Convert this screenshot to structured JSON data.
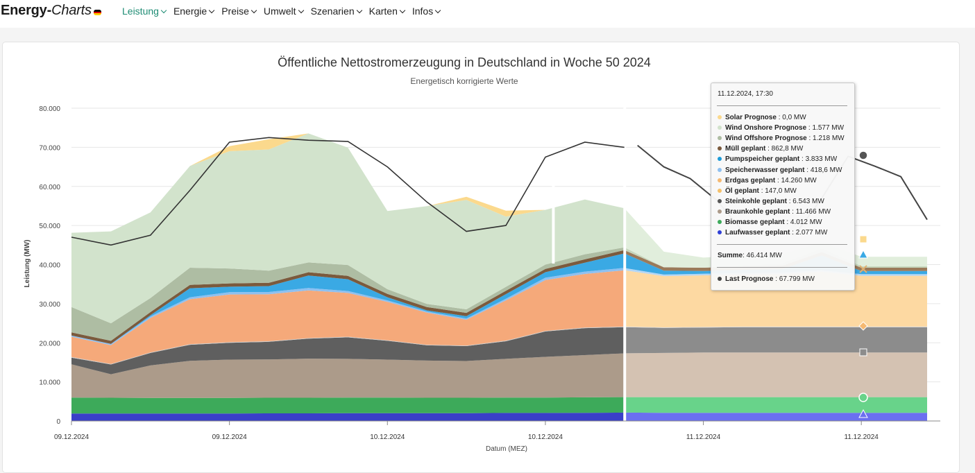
{
  "brand": {
    "energy": "Energy",
    "dash": "-",
    "charts": "Charts"
  },
  "nav": [
    {
      "label": "Leistung",
      "active": true
    },
    {
      "label": "Energie",
      "active": false
    },
    {
      "label": "Preise",
      "active": false
    },
    {
      "label": "Umwelt",
      "active": false
    },
    {
      "label": "Szenarien",
      "active": false
    },
    {
      "label": "Karten",
      "active": false
    },
    {
      "label": "Infos",
      "active": false
    }
  ],
  "chart_data": {
    "type": "area",
    "title": "Öffentliche Nettostromerzeugung in Deutschland in Woche 50 2024",
    "subtitle": "Energetisch korrigierte Werte",
    "xlabel": "Datum (MEZ)",
    "ylabel": "Leistung (MW)",
    "ylim": [
      0,
      80000
    ],
    "yticks": [
      "0",
      "10.000",
      "20.000",
      "30.000",
      "40.000",
      "50.000",
      "60.000",
      "70.000",
      "80.000"
    ],
    "xticks": [
      "09.12.2024",
      "09.12.2024",
      "10.12.2024",
      "10.12.2024",
      "11.12.2024",
      "11.12.2024"
    ],
    "grid": true,
    "x_hours": [
      0,
      3,
      6,
      9,
      12,
      15,
      18,
      21,
      24,
      27,
      30,
      33,
      36,
      39,
      42,
      45,
      48,
      51,
      54,
      57,
      60
    ],
    "split_hour": 42,
    "series": [
      {
        "name": "Laufwasser",
        "color": "#3a3fc9",
        "forecast_color": "#6b6ff0",
        "values": [
          1900,
          1900,
          1900,
          1900,
          1900,
          1950,
          1950,
          2000,
          2000,
          2000,
          2000,
          2050,
          2050,
          2100,
          2150,
          2100,
          2100,
          2100,
          2100,
          2100,
          2100
        ]
      },
      {
        "name": "Biomasse",
        "color": "#3daa5a",
        "forecast_color": "#68d38a",
        "values": [
          4100,
          4050,
          4000,
          4000,
          4000,
          4000,
          4000,
          4000,
          4000,
          3950,
          3950,
          3950,
          3950,
          3950,
          3950,
          4000,
          4000,
          4000,
          4000,
          4000,
          4000
        ]
      },
      {
        "name": "Braunkohle",
        "color": "#ac9b8a",
        "forecast_color": "#d4c2b2",
        "values": [
          8500,
          6000,
          8300,
          9500,
          9800,
          9800,
          10000,
          9900,
          9700,
          9500,
          9400,
          9900,
          10400,
          10800,
          11200,
          11300,
          11400,
          11400,
          11400,
          11400,
          11400
        ]
      },
      {
        "name": "Steinkohle",
        "color": "#5f5f5f",
        "forecast_color": "#8c8c8c",
        "values": [
          1700,
          2500,
          3200,
          4100,
          4300,
          4500,
          5100,
          5500,
          4800,
          3900,
          3800,
          4500,
          6500,
          6900,
          6700,
          6400,
          6400,
          6500,
          6500,
          6500,
          6500
        ]
      },
      {
        "name": "Öl",
        "color": "#cccccc",
        "forecast_color": "#dddddd",
        "values": [
          150,
          150,
          150,
          150,
          150,
          150,
          150,
          150,
          150,
          150,
          150,
          150,
          150,
          150,
          150,
          150,
          150,
          150,
          150,
          150,
          150
        ]
      },
      {
        "name": "Erdgas",
        "color": "#f5a97a",
        "forecast_color": "#fdd9a2",
        "values": [
          5200,
          4800,
          8800,
          11500,
          12200,
          12000,
          12200,
          11200,
          9800,
          8200,
          6600,
          10300,
          13000,
          13700,
          14400,
          13100,
          13200,
          13300,
          13400,
          14000,
          13000
        ]
      },
      {
        "name": "Speicherwasser",
        "color": "#8ec0f0",
        "forecast_color": "#b3d6f5",
        "values": [
          300,
          300,
          400,
          500,
          600,
          600,
          600,
          500,
          400,
          300,
          300,
          400,
          600,
          600,
          600,
          400,
          400,
          400,
          400,
          400,
          400
        ]
      },
      {
        "name": "Pumpspeicher",
        "color": "#3aa9e4",
        "forecast_color": "#3aa9e4",
        "values": [
          0,
          0,
          300,
          2300,
          1400,
          1500,
          3200,
          3000,
          800,
          300,
          600,
          1200,
          1400,
          2300,
          3700,
          1000,
          700,
          800,
          900,
          3800,
          800
        ]
      },
      {
        "name": "Müll",
        "color": "#7b5a3d",
        "forecast_color": "#9a7a5a",
        "values": [
          800,
          800,
          800,
          850,
          850,
          850,
          850,
          850,
          850,
          850,
          850,
          850,
          850,
          850,
          850,
          850,
          850,
          850,
          860,
          860,
          860
        ]
      },
      {
        "name": "Wind Offshore",
        "color": "#aebda3",
        "forecast_color": "#c6d6bc",
        "values": [
          6500,
          4500,
          3600,
          4400,
          3800,
          3100,
          2500,
          2800,
          1200,
          800,
          900,
          1000,
          1100,
          1300,
          700,
          0,
          0,
          200,
          600,
          900,
          400
        ]
      },
      {
        "name": "Wind Onshore",
        "color": "#d2e3cc",
        "forecast_color": "#e1eedc",
        "values": [
          19000,
          23500,
          21900,
          26000,
          30000,
          31000,
          33000,
          30000,
          20000,
          25000,
          28000,
          18000,
          14000,
          14000,
          10000,
          4000,
          2600,
          2600,
          2400,
          1600,
          2400
        ]
      },
      {
        "name": "Solar",
        "color": "#fbd98d",
        "forecast_color": "#fbd98d",
        "values": [
          0,
          0,
          0,
          0,
          1300,
          2600,
          0,
          0,
          0,
          0,
          800,
          1500,
          0,
          0,
          0,
          0,
          0,
          0,
          0,
          0,
          0
        ]
      }
    ],
    "load": {
      "name": "Last",
      "color": "#333333",
      "values": [
        47000,
        45000,
        47500,
        59000,
        71300,
        72500,
        71800,
        71500,
        65000,
        56000,
        48500,
        50000,
        67500,
        71300,
        70000,
        70500,
        65000,
        62000,
        56500,
        48500,
        48200,
        47800,
        57000,
        67700,
        65200,
        62500,
        51500
      ],
      "x_hours": [
        0,
        3,
        6,
        9,
        12,
        15,
        18,
        21,
        24,
        27,
        30,
        33,
        36,
        39,
        42,
        43,
        45,
        47,
        49,
        51,
        53,
        55,
        57,
        59,
        61,
        63,
        65
      ]
    }
  },
  "tooltip": {
    "header": "11.12.2024, 17:30",
    "rows": [
      {
        "label": "Solar Prognose",
        "value": ": 0,0 MW",
        "color": "#fbd98d"
      },
      {
        "label": "Wind Onshore Prognose",
        "value": ": 1.577 MW",
        "color": "#d2e3cc"
      },
      {
        "label": "Wind Offshore Prognose",
        "value": ": 1.218 MW",
        "color": "#aebda3"
      },
      {
        "label": "Müll geplant",
        "value": ": 862,8 MW",
        "color": "#7b5a3d"
      },
      {
        "label": "Pumpspeicher geplant",
        "value": ": 3.833 MW",
        "color": "#1c9bd8"
      },
      {
        "label": "Speicherwasser geplant",
        "value": ": 418,6 MW",
        "color": "#8ec0f0"
      },
      {
        "label": "Erdgas geplant",
        "value": ": 14.260 MW",
        "color": "#f5b971"
      },
      {
        "label": "Öl geplant",
        "value": ": 147,0 MW",
        "color": "#f5c06a"
      },
      {
        "label": "Steinkohle geplant",
        "value": ": 6.543 MW",
        "color": "#555555"
      },
      {
        "label": "Braunkohle geplant",
        "value": ": 11.466 MW",
        "color": "#ac9b8a"
      },
      {
        "label": "Biomasse geplant",
        "value": ": 4.012 MW",
        "color": "#3daa5a"
      },
      {
        "label": "Laufwasser geplant",
        "value": ": 2.077 MW",
        "color": "#2f3fd6"
      }
    ],
    "sum_label": "Summe",
    "sum_value": ": 46.414 MW",
    "load_label": "Last Prognose",
    "load_value": ": 67.799 MW",
    "load_color": "#444444"
  }
}
